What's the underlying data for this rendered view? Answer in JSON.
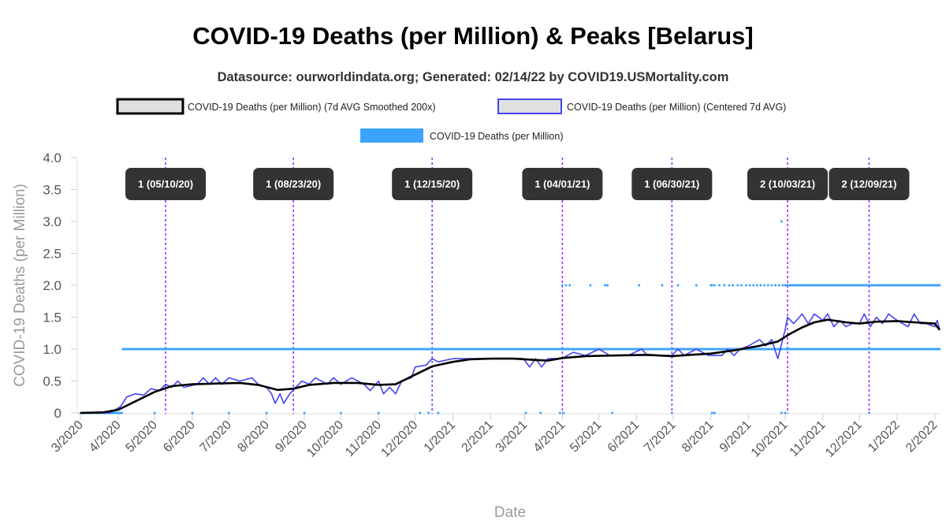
{
  "chart_data": {
    "type": "line",
    "title": "COVID-19 Deaths (per Million) & Peaks [Belarus]",
    "subtitle": "Datasource: ourworldindata.org; Generated: 02/14/22 by COVID19.USMortality.com",
    "xlabel": "Date",
    "ylabel": "COVID-19 Deaths (per Million)",
    "ylim": [
      0,
      4
    ],
    "y_ticks": [
      "0",
      "0.5",
      "1.0",
      "1.5",
      "2.0",
      "2.5",
      "3.0",
      "3.5",
      "4.0"
    ],
    "x_ticks": [
      "3/2020",
      "4/2020",
      "5/2020",
      "6/2020",
      "7/2020",
      "8/2020",
      "9/2020",
      "10/2020",
      "11/2020",
      "12/2020",
      "1/2021",
      "2/2021",
      "3/2021",
      "4/2021",
      "5/2021",
      "6/2021",
      "7/2021",
      "8/2021",
      "9/2021",
      "10/2021",
      "11/2021",
      "12/2021",
      "1/2022",
      "2/2022"
    ],
    "x_range": [
      "2020-03-01",
      "2022-02-05"
    ],
    "legend": {
      "placement": "top",
      "items": [
        {
          "label": "COVID-19 Deaths (per Million) (7d AVG Smoothed 200x)",
          "color": "#000000",
          "fill": "#e0e0e0"
        },
        {
          "label": "COVID-19 Deaths (per Million) (Centered 7d AVG)",
          "color": "#4444ee",
          "fill": "#e0e0e0"
        },
        {
          "label": "COVID-19 Deaths (per Million)",
          "color": "#3ba3ff",
          "fill": "#3ba3ff"
        }
      ]
    },
    "series": [
      {
        "name": "COVID-19 Deaths (per Million) (7d AVG Smoothed 200x)",
        "color": "#000000",
        "points": [
          [
            "2020-03-01",
            0
          ],
          [
            "2020-03-20",
            0.01
          ],
          [
            "2020-04-01",
            0.05
          ],
          [
            "2020-04-15",
            0.18
          ],
          [
            "2020-05-01",
            0.33
          ],
          [
            "2020-05-15",
            0.42
          ],
          [
            "2020-06-01",
            0.45
          ],
          [
            "2020-06-20",
            0.46
          ],
          [
            "2020-07-10",
            0.47
          ],
          [
            "2020-07-25",
            0.44
          ],
          [
            "2020-08-10",
            0.36
          ],
          [
            "2020-08-23",
            0.38
          ],
          [
            "2020-09-05",
            0.44
          ],
          [
            "2020-09-25",
            0.47
          ],
          [
            "2020-10-15",
            0.47
          ],
          [
            "2020-11-01",
            0.44
          ],
          [
            "2020-11-15",
            0.45
          ],
          [
            "2020-12-01",
            0.6
          ],
          [
            "2020-12-15",
            0.73
          ],
          [
            "2021-01-01",
            0.8
          ],
          [
            "2021-01-15",
            0.84
          ],
          [
            "2021-02-01",
            0.85
          ],
          [
            "2021-02-20",
            0.85
          ],
          [
            "2021-03-10",
            0.83
          ],
          [
            "2021-03-20",
            0.82
          ],
          [
            "2021-04-01",
            0.86
          ],
          [
            "2021-04-20",
            0.89
          ],
          [
            "2021-05-15",
            0.9
          ],
          [
            "2021-06-10",
            0.91
          ],
          [
            "2021-06-30",
            0.89
          ],
          [
            "2021-07-15",
            0.91
          ],
          [
            "2021-08-01",
            0.93
          ],
          [
            "2021-08-20",
            0.98
          ],
          [
            "2021-09-10",
            1.05
          ],
          [
            "2021-09-25",
            1.12
          ],
          [
            "2021-10-05",
            1.24
          ],
          [
            "2021-10-15",
            1.34
          ],
          [
            "2021-10-25",
            1.42
          ],
          [
            "2021-11-05",
            1.46
          ],
          [
            "2021-11-20",
            1.42
          ],
          [
            "2021-12-01",
            1.4
          ],
          [
            "2021-12-15",
            1.43
          ],
          [
            "2022-01-01",
            1.44
          ],
          [
            "2022-01-15",
            1.42
          ],
          [
            "2022-02-01",
            1.4
          ],
          [
            "2022-02-05",
            1.3
          ]
        ]
      },
      {
        "name": "COVID-19 Deaths (per Million) (Centered 7d AVG)",
        "color": "#4444ee",
        "points": [
          [
            "2020-03-01",
            0
          ],
          [
            "2020-03-25",
            0
          ],
          [
            "2020-04-03",
            0.1
          ],
          [
            "2020-04-08",
            0.25
          ],
          [
            "2020-04-15",
            0.3
          ],
          [
            "2020-04-22",
            0.28
          ],
          [
            "2020-04-28",
            0.38
          ],
          [
            "2020-05-05",
            0.35
          ],
          [
            "2020-05-10",
            0.45
          ],
          [
            "2020-05-15",
            0.4
          ],
          [
            "2020-05-20",
            0.5
          ],
          [
            "2020-05-25",
            0.4
          ],
          [
            "2020-06-05",
            0.45
          ],
          [
            "2020-06-10",
            0.55
          ],
          [
            "2020-06-15",
            0.45
          ],
          [
            "2020-06-20",
            0.55
          ],
          [
            "2020-06-25",
            0.45
          ],
          [
            "2020-07-01",
            0.55
          ],
          [
            "2020-07-10",
            0.5
          ],
          [
            "2020-07-20",
            0.55
          ],
          [
            "2020-07-25",
            0.45
          ],
          [
            "2020-08-01",
            0.4
          ],
          [
            "2020-08-05",
            0.3
          ],
          [
            "2020-08-08",
            0.15
          ],
          [
            "2020-08-12",
            0.3
          ],
          [
            "2020-08-15",
            0.15
          ],
          [
            "2020-08-20",
            0.3
          ],
          [
            "2020-08-25",
            0.4
          ],
          [
            "2020-08-30",
            0.5
          ],
          [
            "2020-09-05",
            0.45
          ],
          [
            "2020-09-10",
            0.55
          ],
          [
            "2020-09-20",
            0.45
          ],
          [
            "2020-09-25",
            0.55
          ],
          [
            "2020-10-01",
            0.45
          ],
          [
            "2020-10-10",
            0.55
          ],
          [
            "2020-10-20",
            0.45
          ],
          [
            "2020-10-25",
            0.35
          ],
          [
            "2020-11-01",
            0.5
          ],
          [
            "2020-11-05",
            0.3
          ],
          [
            "2020-11-10",
            0.4
          ],
          [
            "2020-11-15",
            0.3
          ],
          [
            "2020-11-20",
            0.5
          ],
          [
            "2020-11-28",
            0.55
          ],
          [
            "2020-12-01",
            0.72
          ],
          [
            "2020-12-10",
            0.75
          ],
          [
            "2020-12-15",
            0.85
          ],
          [
            "2020-12-20",
            0.8
          ],
          [
            "2021-01-01",
            0.85
          ],
          [
            "2021-02-01",
            0.85
          ],
          [
            "2021-02-28",
            0.85
          ],
          [
            "2021-03-05",
            0.72
          ],
          [
            "2021-03-10",
            0.85
          ],
          [
            "2021-03-15",
            0.72
          ],
          [
            "2021-03-20",
            0.85
          ],
          [
            "2021-04-01",
            0.85
          ],
          [
            "2021-04-05",
            0.9
          ],
          [
            "2021-04-10",
            0.95
          ],
          [
            "2021-04-20",
            0.9
          ],
          [
            "2021-05-01",
            1.0
          ],
          [
            "2021-05-10",
            0.9
          ],
          [
            "2021-05-25",
            0.9
          ],
          [
            "2021-06-05",
            1.0
          ],
          [
            "2021-06-10",
            0.9
          ],
          [
            "2021-06-30",
            0.9
          ],
          [
            "2021-07-05",
            1.0
          ],
          [
            "2021-07-10",
            0.9
          ],
          [
            "2021-07-20",
            1.0
          ],
          [
            "2021-07-30",
            0.9
          ],
          [
            "2021-08-10",
            0.9
          ],
          [
            "2021-08-15",
            1.0
          ],
          [
            "2021-08-20",
            0.9
          ],
          [
            "2021-08-25",
            1.0
          ],
          [
            "2021-09-01",
            1.05
          ],
          [
            "2021-09-10",
            1.15
          ],
          [
            "2021-09-15",
            1.05
          ],
          [
            "2021-09-20",
            1.15
          ],
          [
            "2021-09-25",
            0.85
          ],
          [
            "2021-10-01",
            1.3
          ],
          [
            "2021-10-03",
            1.5
          ],
          [
            "2021-10-08",
            1.4
          ],
          [
            "2021-10-15",
            1.55
          ],
          [
            "2021-10-20",
            1.4
          ],
          [
            "2021-10-25",
            1.55
          ],
          [
            "2021-11-01",
            1.45
          ],
          [
            "2021-11-05",
            1.55
          ],
          [
            "2021-11-10",
            1.35
          ],
          [
            "2021-11-15",
            1.45
          ],
          [
            "2021-11-20",
            1.35
          ],
          [
            "2021-11-25",
            1.4
          ],
          [
            "2021-12-01",
            1.4
          ],
          [
            "2021-12-05",
            1.55
          ],
          [
            "2021-12-10",
            1.35
          ],
          [
            "2021-12-15",
            1.5
          ],
          [
            "2021-12-20",
            1.4
          ],
          [
            "2021-12-25",
            1.55
          ],
          [
            "2022-01-01",
            1.45
          ],
          [
            "2022-01-10",
            1.35
          ],
          [
            "2022-01-15",
            1.55
          ],
          [
            "2022-01-20",
            1.4
          ],
          [
            "2022-01-25",
            1.4
          ],
          [
            "2022-02-01",
            1.35
          ],
          [
            "2022-02-03",
            1.45
          ],
          [
            "2022-02-05",
            1.3
          ]
        ]
      },
      {
        "name": "COVID-19 Deaths (per Million)",
        "color": "#3ba3ff",
        "daily_levels": [
          {
            "from": "2020-03-01",
            "to": "2020-04-04",
            "value": 0
          },
          {
            "from": "2020-04-05",
            "to": "2021-09-29",
            "value": 1
          },
          {
            "from": "2021-10-01",
            "to": "2022-02-05",
            "value": 2
          },
          {
            "from": "2021-10-01",
            "to": "2022-02-05",
            "value": 1
          }
        ],
        "additional_points": [
          [
            "2020-05-01",
            0
          ],
          [
            "2020-06-01",
            0
          ],
          [
            "2020-07-01",
            0
          ],
          [
            "2020-08-01",
            0
          ],
          [
            "2020-09-01",
            0
          ],
          [
            "2020-10-01",
            0
          ],
          [
            "2020-11-01",
            0
          ],
          [
            "2020-12-05",
            0
          ],
          [
            "2020-12-12",
            0
          ],
          [
            "2020-12-20",
            0
          ],
          [
            "2021-03-02",
            0
          ],
          [
            "2021-03-14",
            0
          ],
          [
            "2021-03-30",
            0
          ],
          [
            "2021-04-02",
            0
          ],
          [
            "2021-05-12",
            0
          ],
          [
            "2021-06-30",
            0
          ],
          [
            "2021-08-02",
            0
          ],
          [
            "2021-08-04",
            0
          ],
          [
            "2021-09-28",
            0
          ],
          [
            "2021-10-01",
            0
          ],
          [
            "2021-12-09",
            0
          ],
          [
            "2021-04-01",
            2
          ],
          [
            "2021-04-04",
            2
          ],
          [
            "2021-04-07",
            2
          ],
          [
            "2021-04-24",
            2
          ],
          [
            "2021-05-06",
            2
          ],
          [
            "2021-05-08",
            2
          ],
          [
            "2021-06-03",
            2
          ],
          [
            "2021-06-22",
            2
          ],
          [
            "2021-07-05",
            2
          ],
          [
            "2021-07-20",
            2
          ],
          [
            "2021-08-01",
            2
          ],
          [
            "2021-08-02",
            2
          ],
          [
            "2021-08-04",
            2
          ],
          [
            "2021-08-08",
            2
          ],
          [
            "2021-08-12",
            2
          ],
          [
            "2021-08-16",
            2
          ],
          [
            "2021-08-19",
            2
          ],
          [
            "2021-08-23",
            2
          ],
          [
            "2021-08-26",
            2
          ],
          [
            "2021-08-30",
            2
          ],
          [
            "2021-09-02",
            2
          ],
          [
            "2021-09-05",
            2
          ],
          [
            "2021-09-08",
            2
          ],
          [
            "2021-09-11",
            2
          ],
          [
            "2021-09-14",
            2
          ],
          [
            "2021-09-17",
            2
          ],
          [
            "2021-09-20",
            2
          ],
          [
            "2021-09-23",
            2
          ],
          [
            "2021-09-26",
            2
          ],
          [
            "2021-09-29",
            2
          ],
          [
            "2021-09-28",
            3
          ]
        ]
      }
    ],
    "peaks": [
      {
        "date": "2020-05-10",
        "label": "1 (05/10/20)"
      },
      {
        "date": "2020-08-23",
        "label": "1 (08/23/20)"
      },
      {
        "date": "2020-12-15",
        "label": "1 (12/15/20)"
      },
      {
        "date": "2021-04-01",
        "label": "1 (04/01/21)"
      },
      {
        "date": "2021-06-30",
        "label": "1 (06/30/21)"
      },
      {
        "date": "2021-10-03",
        "label": "2 (10/03/21)"
      },
      {
        "date": "2021-12-09",
        "label": "2 (12/09/21)"
      }
    ],
    "grid": "off",
    "colors": {
      "peak_line": "#9b30ff",
      "peak_box": "#333333"
    }
  }
}
